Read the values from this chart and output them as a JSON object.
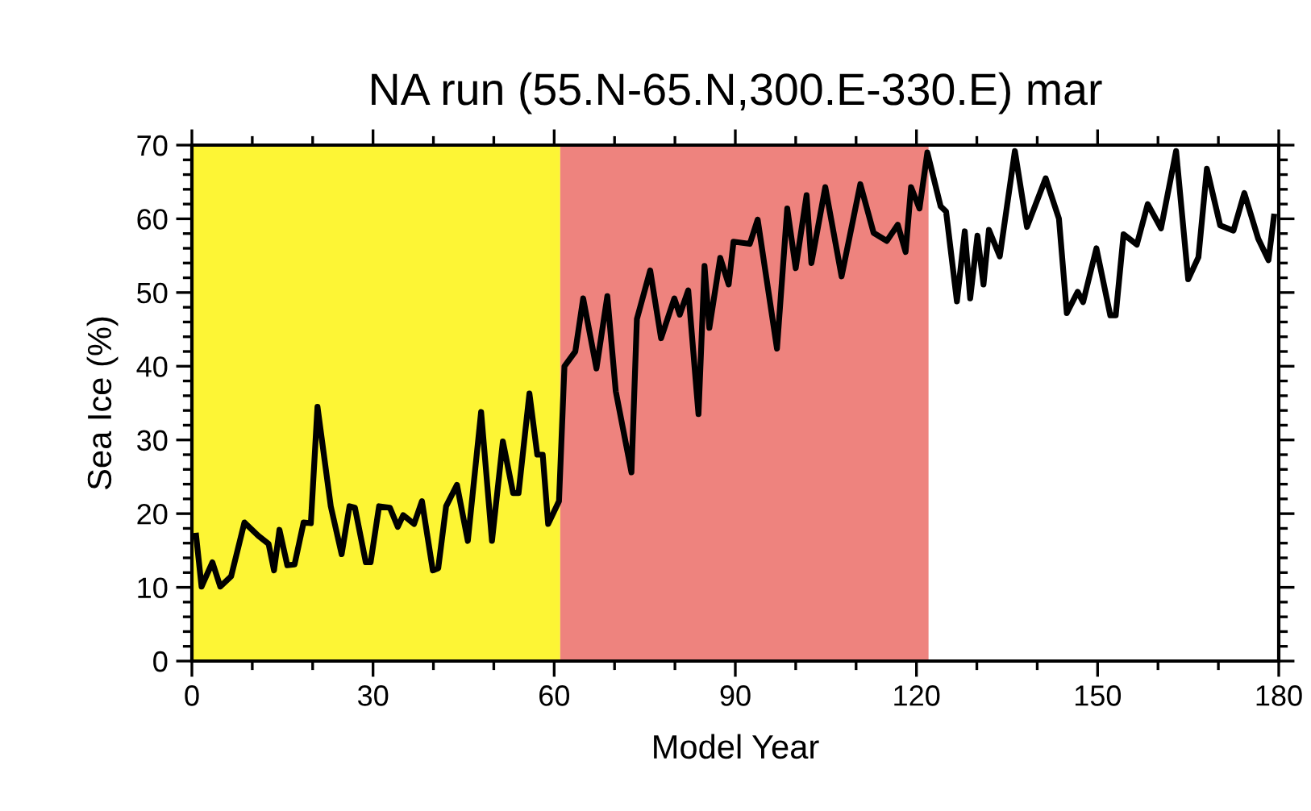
{
  "chart_data": {
    "type": "line",
    "title": "NA run (55.N-65.N,300.E-330.E) mar",
    "xlabel": "Model Year",
    "ylabel": "Sea Ice (%)",
    "xlim": [
      0,
      180
    ],
    "xticks": [
      0,
      30,
      60,
      90,
      120,
      150,
      180
    ],
    "ylim": [
      0,
      70
    ],
    "yticks": [
      0,
      10,
      20,
      30,
      40,
      50,
      60,
      70
    ],
    "grid": false,
    "legend": false,
    "marker": "none",
    "line_style": "solid",
    "bands": [
      {
        "axis": "x",
        "from": 0,
        "to": 61,
        "label": null,
        "color": "#fdf535"
      },
      {
        "axis": "x",
        "from": 61,
        "to": 122,
        "label": null,
        "color": "#ee837e"
      }
    ],
    "series": [
      {
        "color": "#000000",
        "x": [
          0.7,
          1.6,
          3.4,
          4.7,
          6.5,
          8.7,
          11,
          12.7,
          13.6,
          14.5,
          15.8,
          17,
          18.5,
          19.7,
          20.8,
          23,
          24.8,
          26.1,
          27,
          28.8,
          29.6,
          31,
          32.8,
          34.1,
          35,
          36.8,
          38.1,
          39.9,
          40.8,
          42.1,
          43.9,
          45.7,
          47.9,
          49.7,
          51.5,
          53.2,
          54.1,
          55.9,
          57.2,
          58.1,
          59,
          60.8,
          61.7,
          63.5,
          64.8,
          67,
          68.8,
          70.2,
          72.8,
          73.7,
          75.9,
          77.7,
          79.9,
          80.8,
          82.2,
          83.9,
          84.9,
          85.7,
          87.5,
          88.9,
          89.7,
          92.4,
          93.7,
          96.9,
          98.6,
          100,
          101.8,
          102.6,
          104.9,
          107.6,
          110.7,
          112.9,
          115.1,
          116.9,
          118.2,
          119.1,
          120.5,
          121.8,
          124,
          124.9,
          126.7,
          128,
          128.9,
          130.1,
          131.1,
          132,
          133.8,
          136.3,
          138.3,
          141.4,
          143.6,
          144.9,
          146.7,
          147.6,
          149.8,
          152.1,
          153,
          154.3,
          156.5,
          158.3,
          160.5,
          163,
          165,
          166.7,
          168.1,
          170.3,
          172.5,
          174.3,
          176.6,
          178.3,
          179.2
        ],
        "values": [
          17,
          10.1,
          13.4,
          10.1,
          11.5,
          18.8,
          17,
          15.9,
          12.3,
          17.8,
          13,
          13.1,
          18.8,
          18.7,
          34.5,
          21,
          14.5,
          21,
          20.8,
          13.4,
          13.4,
          21,
          20.8,
          18.2,
          19.8,
          18.6,
          21.7,
          12.3,
          12.6,
          21,
          23.9,
          16.3,
          33.8,
          16.3,
          29.8,
          22.8,
          22.8,
          36.3,
          28,
          28,
          18.6,
          21.7,
          40,
          42,
          49.2,
          39.7,
          49.5,
          36.6,
          25.6,
          46.4,
          53,
          43.8,
          49.2,
          47,
          50.3,
          33.5,
          53.6,
          45.2,
          54.7,
          51.1,
          56.9,
          56.6,
          59.9,
          42.4,
          61.4,
          53.3,
          63.2,
          54,
          64.3,
          52.2,
          64.7,
          58.1,
          57,
          59.2,
          55.5,
          64.3,
          61.4,
          69,
          61.7,
          61,
          48.8,
          58.3,
          49.2,
          57.7,
          51.1,
          58.5,
          54.9,
          69.2,
          58.9,
          65.5,
          60,
          47.2,
          50.1,
          48.7,
          56,
          46.9,
          46.9,
          57.9,
          56.5,
          62,
          58.7,
          69.2,
          51.8,
          54.8,
          66.8,
          59.1,
          58.4,
          63.5,
          57.3,
          54.4,
          60.3
        ]
      }
    ]
  }
}
